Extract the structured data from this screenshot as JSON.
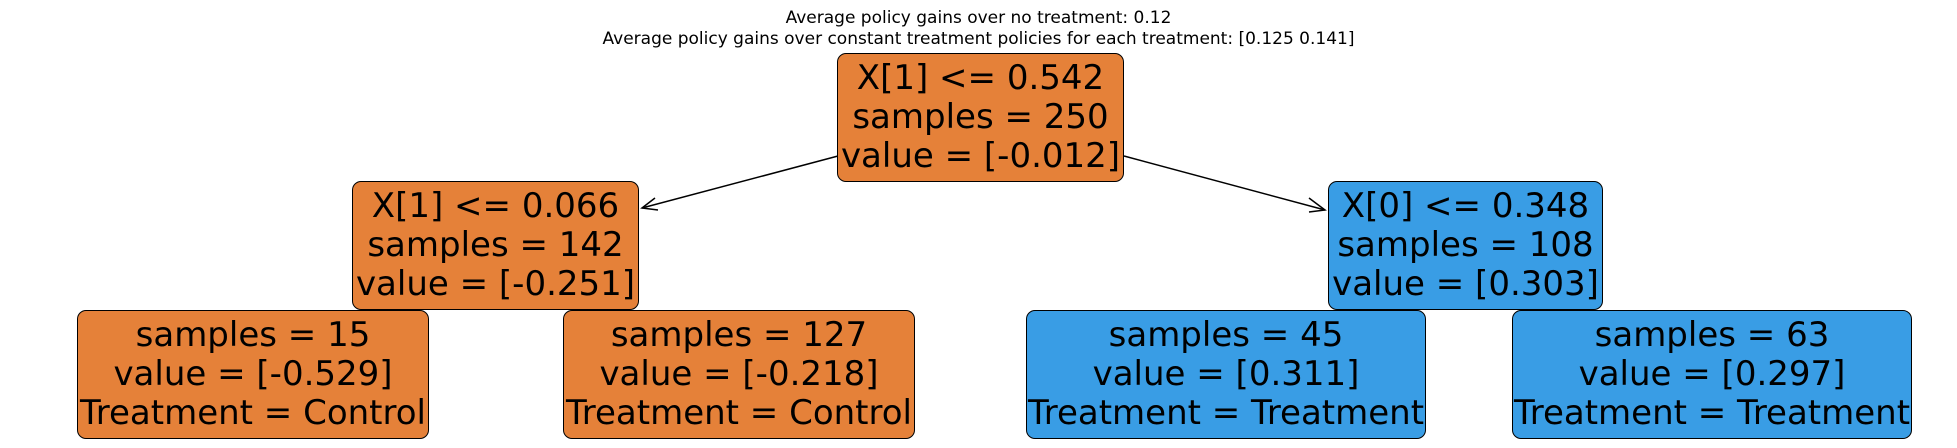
{
  "title": {
    "line1": "Average policy gains over no treatment: 0.12",
    "line2": "Average policy gains over constant treatment policies for each treatment: [0.125 0.141]"
  },
  "colors": {
    "negative_node": "#e58139",
    "positive_node": "#399de5",
    "edge": "#000000"
  },
  "tree": {
    "root": {
      "split": "X[1] <= 0.542",
      "samples": "samples = 250",
      "value": "value = [-0.012]"
    },
    "left": {
      "split": "X[1] <= 0.066",
      "samples": "samples = 142",
      "value": "value = [-0.251]"
    },
    "right": {
      "split": "X[0] <= 0.348",
      "samples": "samples = 108",
      "value": "value = [0.303]"
    },
    "leaf_ll": {
      "samples": "samples = 15",
      "value": "value = [-0.529]",
      "treatment": "Treatment = Control"
    },
    "leaf_lr": {
      "samples": "samples = 127",
      "value": "value = [-0.218]",
      "treatment": "Treatment = Control"
    },
    "leaf_rl": {
      "samples": "samples = 45",
      "value": "value = [0.311]",
      "treatment": "Treatment = Treatment"
    },
    "leaf_rr": {
      "samples": "samples = 63",
      "value": "value = [0.297]",
      "treatment": "Treatment = Treatment"
    }
  }
}
